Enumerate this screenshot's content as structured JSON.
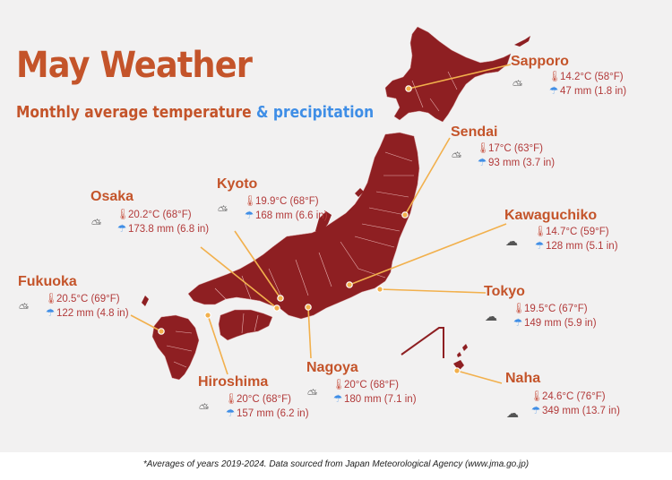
{
  "title": "May Weather",
  "subtitle": {
    "part_a": "Monthly average temperature",
    "part_b": "& precipitation"
  },
  "colors": {
    "accent": "#c4542a",
    "land": "#8e1f22",
    "leader_line": "#f2b04c",
    "precip_accent": "#3f8ee6"
  },
  "cities": [
    {
      "id": "sapporo",
      "name": "Sapporo",
      "temp": "14.2°C (58°F)",
      "precip": "47 mm (1.8 in)",
      "condition_icon": "partly-cloudy-icon"
    },
    {
      "id": "sendai",
      "name": "Sendai",
      "temp": "17°C (63°F)",
      "precip": "93 mm (3.7 in)",
      "condition_icon": "partly-cloudy-icon"
    },
    {
      "id": "kyoto",
      "name": "Kyoto",
      "temp": "19.9°C (68°F)",
      "precip": "168 mm (6.6 in)",
      "condition_icon": "partly-cloudy-icon"
    },
    {
      "id": "osaka",
      "name": "Osaka",
      "temp": "20.2°C (68°F)",
      "precip": "173.8 mm (6.8 in)",
      "condition_icon": "partly-cloudy-icon"
    },
    {
      "id": "kawaguchiko",
      "name": "Kawaguchiko",
      "temp": "14.7°C (59°F)",
      "precip": "128 mm (5.1 in)",
      "condition_icon": "cloud-icon"
    },
    {
      "id": "fukuoka",
      "name": "Fukuoka",
      "temp": "20.5°C (69°F)",
      "precip": "122 mm (4.8 in)",
      "condition_icon": "partly-cloudy-icon"
    },
    {
      "id": "tokyo",
      "name": "Tokyo",
      "temp": "19.5°C (67°F)",
      "precip": "149 mm (5.9 in)",
      "condition_icon": "cloud-icon"
    },
    {
      "id": "hiroshima",
      "name": "Hiroshima",
      "temp": "20°C (68°F)",
      "precip": "157 mm (6.2 in)",
      "condition_icon": "partly-cloudy-icon"
    },
    {
      "id": "nagoya",
      "name": "Nagoya",
      "temp": "20°C (68°F)",
      "precip": "180 mm (7.1 in)",
      "condition_icon": "partly-cloudy-icon"
    },
    {
      "id": "naha",
      "name": "Naha",
      "temp": "24.6°C (76°F)",
      "precip": "349 mm (13.7 in)",
      "condition_icon": "cloud-icon"
    }
  ],
  "footnote": "*Averages of years 2019-2024. Data sourced from Japan Meteorological Agency (www.jma.go.jp)"
}
